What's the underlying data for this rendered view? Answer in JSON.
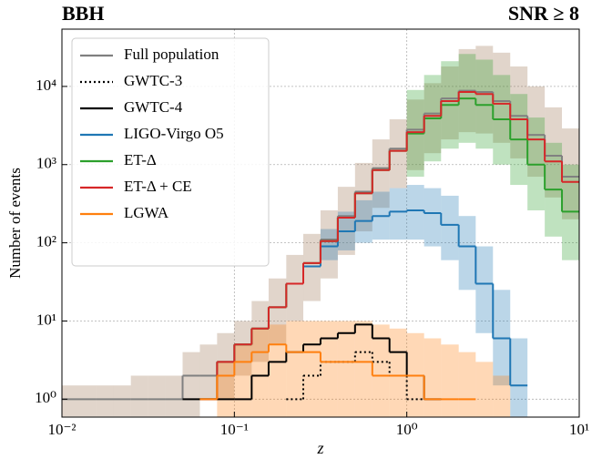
{
  "chart_data": {
    "type": "step-histogram",
    "title": "BBH",
    "subtitle": "SNR ≥ 8",
    "x_label": "z",
    "y_label": "Number of events",
    "log_x": true,
    "log_y": true,
    "grid": true,
    "legend": "upper left",
    "xlim": [
      0.01,
      10
    ],
    "ylim": [
      0.59,
      54000
    ],
    "xticks": [
      {
        "value": 0.01,
        "label": "10⁻²"
      },
      {
        "value": 0.1,
        "label": "10⁻¹"
      },
      {
        "value": 1,
        "label": "10⁰"
      },
      {
        "value": 10,
        "label": "10¹"
      }
    ],
    "yticks": [
      {
        "value": 1,
        "label": "10⁰"
      },
      {
        "value": 10,
        "label": "10¹"
      },
      {
        "value": 100,
        "label": "10²"
      },
      {
        "value": 1000,
        "label": "10³"
      },
      {
        "value": 10000,
        "label": "10⁴"
      }
    ],
    "bins": [
      0.01,
      0.0126,
      0.0158,
      0.02,
      0.0251,
      0.0316,
      0.0398,
      0.0501,
      0.0631,
      0.0794,
      0.1,
      0.126,
      0.158,
      0.2,
      0.251,
      0.316,
      0.398,
      0.501,
      0.631,
      0.794,
      1,
      1.26,
      1.58,
      2,
      2.51,
      3.16,
      3.98,
      5.01,
      6.31,
      7.94,
      10
    ],
    "series": [
      {
        "name": "Full population",
        "color": "#808080",
        "band_color": "#9a7352",
        "style": "solid",
        "values": [
          1,
          1,
          1,
          1,
          1,
          1,
          1,
          2,
          2,
          3,
          5,
          8,
          15,
          30,
          55,
          110,
          220,
          450,
          900,
          1600,
          2800,
          4500,
          7000,
          8800,
          8500,
          6500,
          4200,
          2400,
          1300,
          700
        ],
        "band_lo": [
          0.6,
          0.6,
          0.6,
          0.6,
          0.6,
          0.6,
          0.6,
          0.6,
          1,
          1,
          2,
          3,
          5,
          10,
          18,
          35,
          70,
          140,
          280,
          500,
          850,
          1400,
          2100,
          2600,
          2500,
          1900,
          1200,
          700,
          380,
          200
        ],
        "band_hi": [
          1.5,
          1.5,
          1.5,
          1.5,
          2,
          2,
          2,
          4,
          5,
          7,
          10,
          18,
          35,
          70,
          130,
          260,
          520,
          1050,
          2100,
          3800,
          6800,
          11000,
          18000,
          30000,
          33000,
          27000,
          18000,
          10000,
          5400,
          2900
        ]
      },
      {
        "name": "GWTC-3",
        "color": "#000000",
        "style": "dotted",
        "values": [
          null,
          null,
          null,
          null,
          null,
          null,
          null,
          null,
          null,
          null,
          null,
          null,
          null,
          1,
          2,
          3,
          3,
          4,
          3,
          2,
          1,
          null,
          null,
          null,
          null,
          null,
          null,
          null,
          null,
          null
        ]
      },
      {
        "name": "GWTC-4",
        "color": "#000000",
        "style": "solid",
        "values": [
          null,
          null,
          null,
          null,
          null,
          null,
          null,
          1,
          1,
          1,
          1,
          2,
          3,
          4,
          5,
          6,
          7,
          9,
          6,
          4,
          2,
          1,
          null,
          null,
          null,
          null,
          null,
          null,
          null,
          null
        ]
      },
      {
        "name": "LIGO-Virgo O5",
        "color": "#1f77b4",
        "band_color": "#1f77b4",
        "style": "solid",
        "values": [
          null,
          null,
          null,
          null,
          null,
          null,
          null,
          null,
          null,
          null,
          null,
          null,
          null,
          30,
          50,
          90,
          140,
          190,
          220,
          250,
          260,
          240,
          170,
          90,
          30,
          6,
          1.5,
          null,
          null,
          null
        ],
        "band_lo": [
          null,
          null,
          null,
          null,
          null,
          null,
          null,
          null,
          null,
          null,
          null,
          null,
          null,
          null,
          null,
          60,
          80,
          100,
          110,
          110,
          110,
          90,
          60,
          25,
          7,
          1.5,
          0.6,
          null,
          null,
          null
        ],
        "band_hi": [
          null,
          null,
          null,
          null,
          null,
          null,
          null,
          null,
          null,
          null,
          null,
          null,
          null,
          null,
          null,
          150,
          250,
          350,
          450,
          500,
          550,
          500,
          400,
          220,
          90,
          25,
          6,
          null,
          null,
          null
        ]
      },
      {
        "name": "ET-Δ",
        "color": "#2ca02c",
        "band_color": "#2ca02c",
        "style": "solid",
        "values": [
          null,
          null,
          null,
          null,
          null,
          null,
          null,
          null,
          1,
          3,
          5,
          8,
          15,
          30,
          55,
          105,
          210,
          430,
          850,
          1500,
          2500,
          3900,
          5800,
          7000,
          5800,
          3800,
          2100,
          1000,
          480,
          250
        ],
        "band_lo": [
          null,
          null,
          null,
          null,
          null,
          null,
          null,
          null,
          null,
          null,
          null,
          null,
          null,
          null,
          null,
          null,
          null,
          null,
          null,
          null,
          700,
          1100,
          1600,
          1900,
          1600,
          1000,
          550,
          260,
          120,
          60
        ],
        "band_hi": [
          null,
          null,
          null,
          null,
          null,
          null,
          null,
          null,
          null,
          null,
          null,
          null,
          null,
          null,
          null,
          null,
          null,
          null,
          null,
          null,
          9000,
          14000,
          21000,
          26000,
          22000,
          14000,
          8000,
          4000,
          1900,
          1000
        ]
      },
      {
        "name": "ET-Δ + CE",
        "color": "#d62728",
        "band_color": "#c0606a",
        "style": "solid",
        "values": [
          null,
          null,
          null,
          null,
          null,
          null,
          null,
          null,
          1,
          3,
          5,
          8,
          15,
          30,
          55,
          105,
          210,
          430,
          850,
          1500,
          2600,
          4200,
          6500,
          8500,
          8000,
          6000,
          3800,
          2100,
          1100,
          600
        ]
      },
      {
        "name": "LGWA",
        "color": "#ff7f0e",
        "band_color": "#ff7f0e",
        "style": "solid",
        "values": [
          null,
          null,
          null,
          null,
          null,
          null,
          null,
          null,
          1,
          2,
          3,
          4,
          5,
          4,
          4,
          3,
          3,
          3,
          2,
          2,
          2,
          1,
          1,
          1,
          null,
          null,
          null,
          null,
          null,
          null
        ],
        "band_hi": [
          null,
          null,
          null,
          null,
          null,
          null,
          null,
          null,
          null,
          3,
          5,
          8,
          9,
          10,
          10,
          10,
          10,
          10,
          9,
          8,
          7,
          6,
          5,
          4,
          3,
          2,
          null,
          null,
          null,
          null
        ]
      }
    ]
  }
}
